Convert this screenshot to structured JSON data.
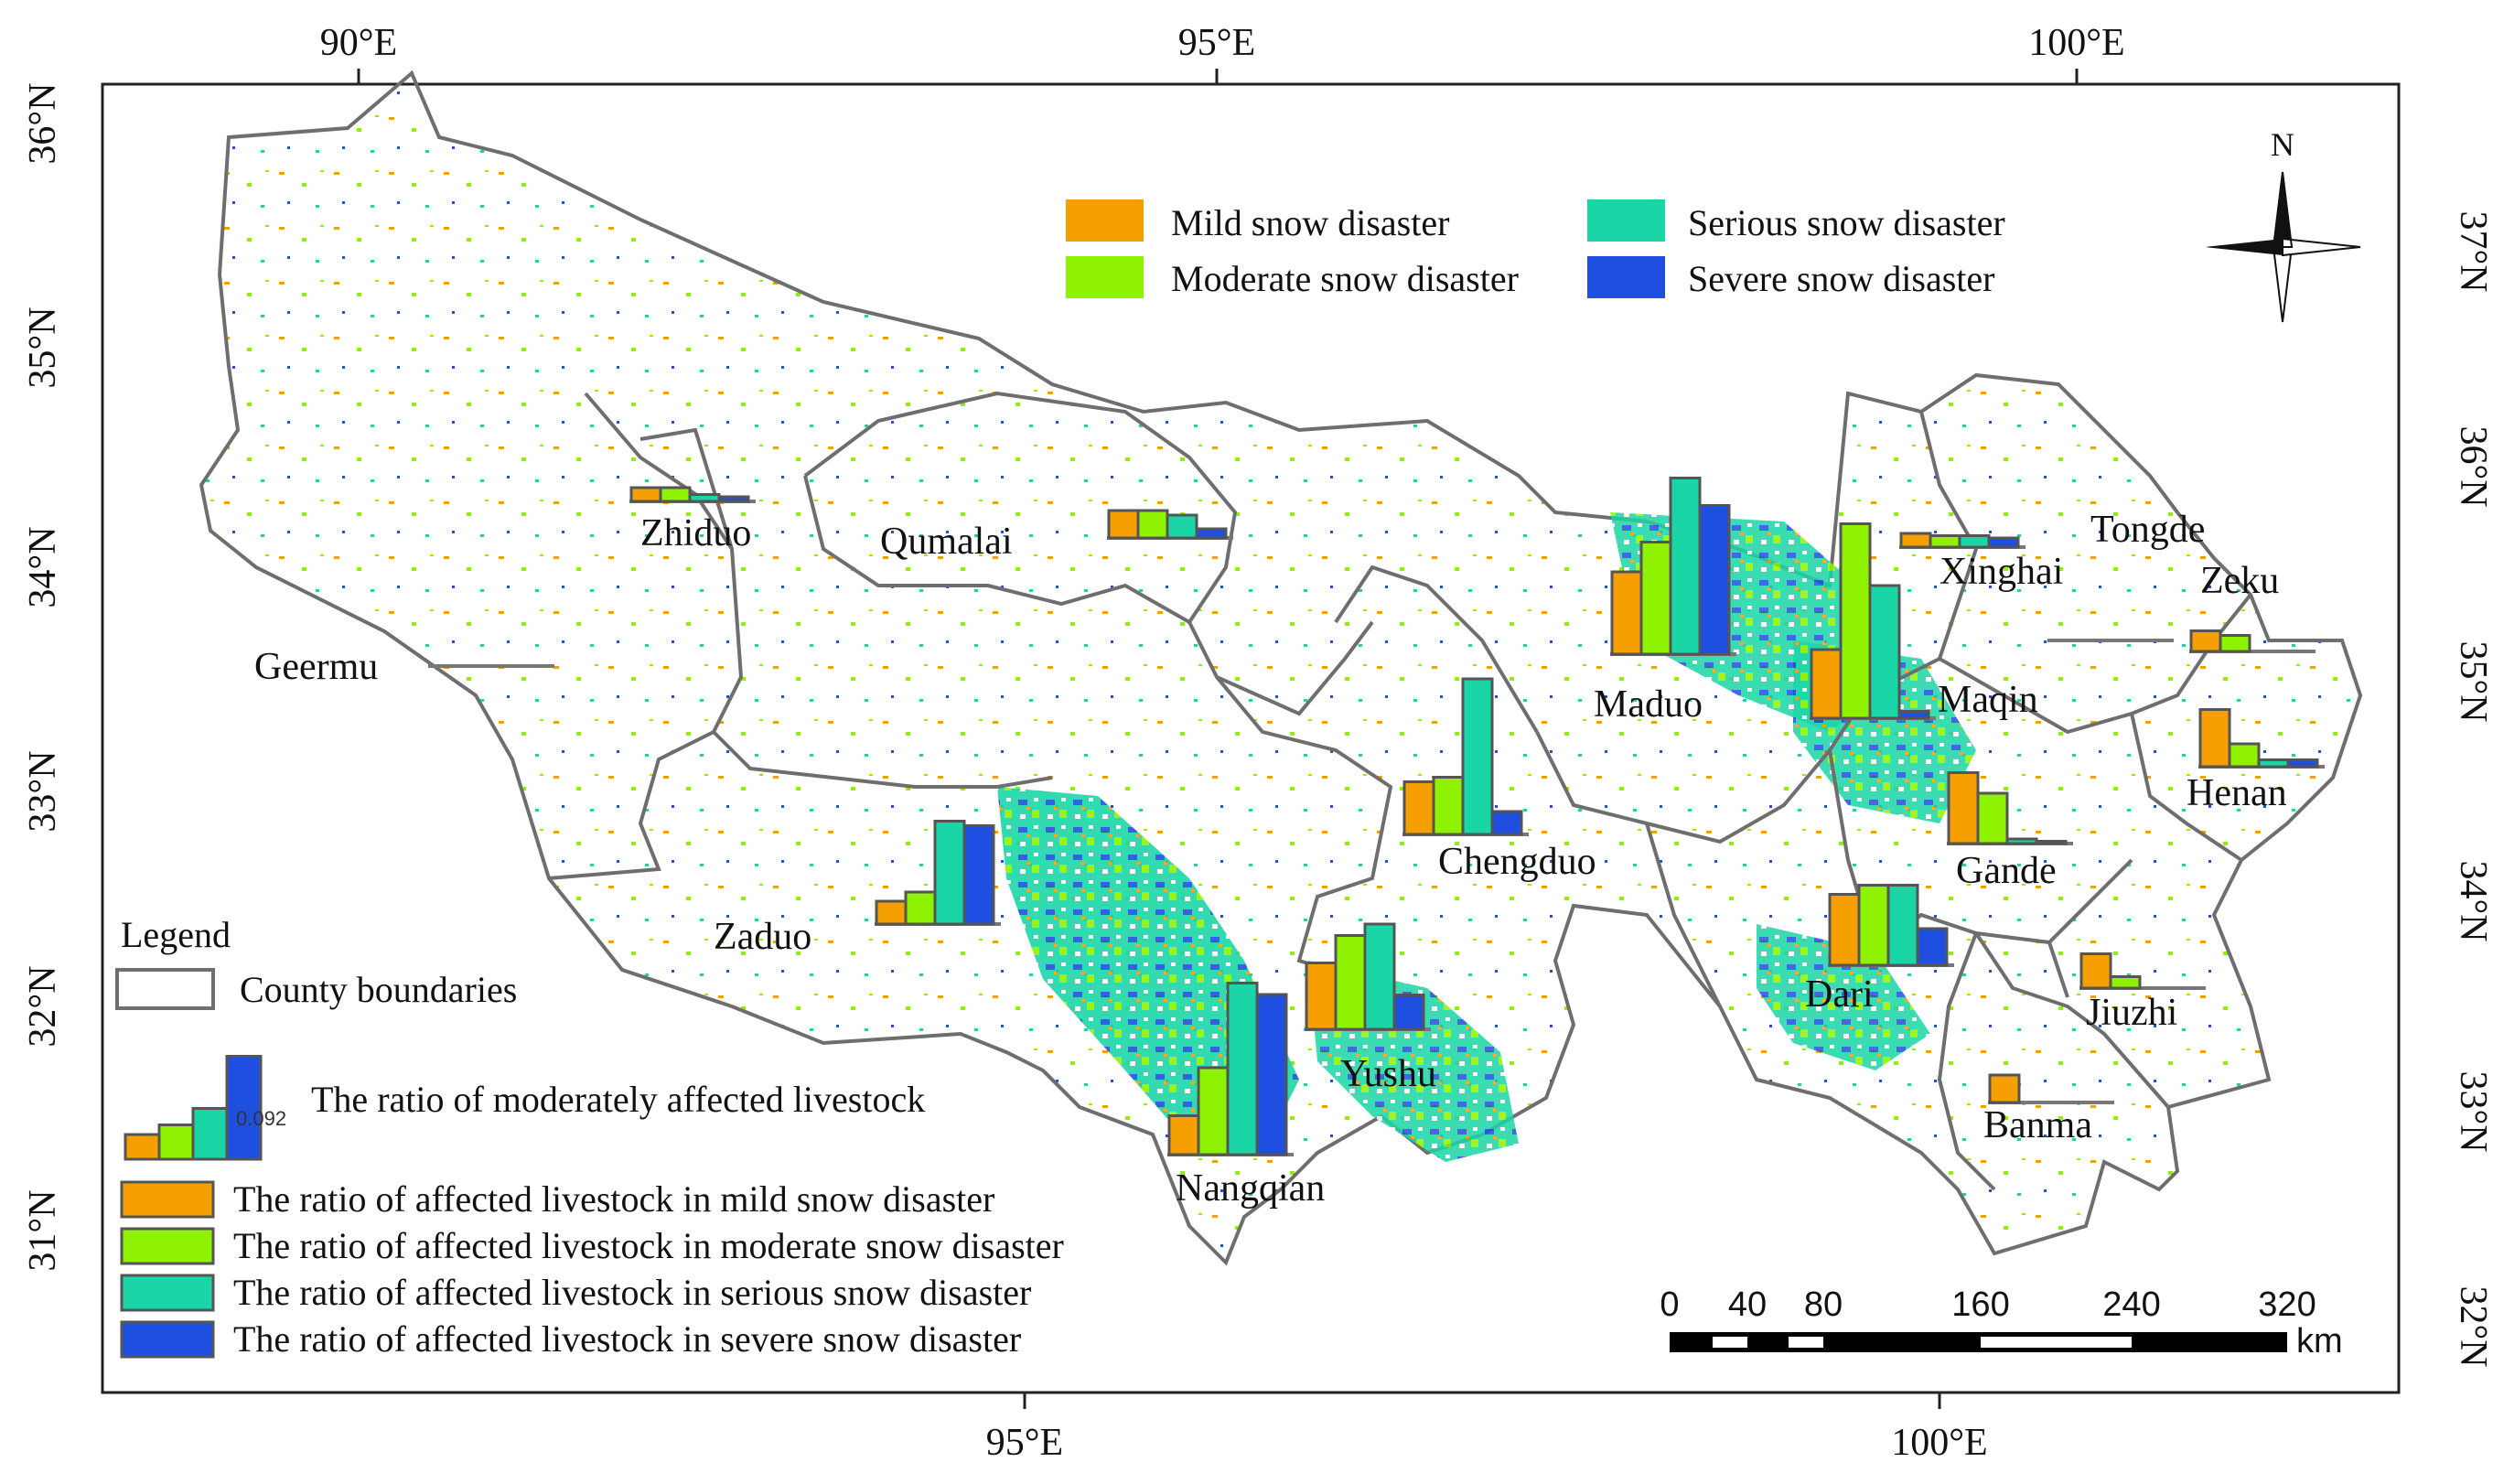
{
  "colors": {
    "mild": "#f5a000",
    "moderate": "#8ef200",
    "serious": "#1ad6a6",
    "severe": "#1f4fe0",
    "boundary": "#6e6e6e",
    "bar_outline": "#555555"
  },
  "axes": {
    "top_ticks": [
      "90°E",
      "95°E",
      "100°E"
    ],
    "bottom_ticks": [
      "95°E",
      "100°E"
    ],
    "left_ticks": [
      "36°N",
      "35°N",
      "34°N",
      "33°N",
      "32°N",
      "31°N"
    ],
    "right_ticks": [
      "37°N",
      "36°N",
      "35°N",
      "34°N",
      "33°N",
      "32°N"
    ]
  },
  "map_legend": {
    "mild": "Mild snow disaster",
    "moderate": "Moderate snow disaster",
    "serious": "Serious snow disaster",
    "severe": "Severe snow disaster"
  },
  "north_arrow": {
    "label": "N"
  },
  "counties": [
    {
      "name": "Zhiduo",
      "ratios": [
        0.006,
        0.006,
        0.003,
        0.002
      ]
    },
    {
      "name": "Qumalai",
      "ratios": [
        0.012,
        0.012,
        0.01,
        0.004
      ]
    },
    {
      "name": "Geermu",
      "ratios": [
        0.0,
        0.0,
        0.0,
        0.0
      ]
    },
    {
      "name": "Zaduo",
      "ratios": [
        0.01,
        0.014,
        0.045,
        0.043
      ]
    },
    {
      "name": "Chengduo",
      "ratios": [
        0.023,
        0.025,
        0.068,
        0.01
      ]
    },
    {
      "name": "Nangqian",
      "ratios": [
        0.017,
        0.038,
        0.075,
        0.07
      ]
    },
    {
      "name": "Yushu",
      "ratios": [
        0.029,
        0.041,
        0.046,
        0.015
      ]
    },
    {
      "name": "Maduo",
      "ratios": [
        0.036,
        0.049,
        0.077,
        0.065
      ]
    },
    {
      "name": "Maqin",
      "ratios": [
        0.03,
        0.085,
        0.058,
        0.003
      ]
    },
    {
      "name": "Xinghai",
      "ratios": [
        0.006,
        0.005,
        0.005,
        0.004
      ]
    },
    {
      "name": "Tongde",
      "ratios": [
        0.0,
        0.0,
        0.0,
        0.0
      ]
    },
    {
      "name": "Zeku",
      "ratios": [
        0.009,
        0.007,
        0.0,
        0.0
      ]
    },
    {
      "name": "Henan",
      "ratios": [
        0.025,
        0.01,
        0.003,
        0.003
      ]
    },
    {
      "name": "Gande",
      "ratios": [
        0.031,
        0.022,
        0.002,
        0.001
      ]
    },
    {
      "name": "Dari",
      "ratios": [
        0.031,
        0.035,
        0.035,
        0.016
      ]
    },
    {
      "name": "Jiuzhi",
      "ratios": [
        0.015,
        0.005,
        0.0,
        0.0
      ]
    },
    {
      "name": "Banma",
      "ratios": [
        0.012,
        0.0,
        0.0,
        0.0
      ]
    }
  ],
  "legend": {
    "title": "Legend",
    "county_boundaries": "County boundaries",
    "bar_value": "0.092",
    "bar_sample_text": "The ratio of moderately affected livestock",
    "items": [
      "The ratio of affected livestock in mild snow disaster",
      "The ratio of affected livestock in moderate snow disaster",
      "The ratio of affected livestock in serious snow disaster",
      "The ratio of affected livestock in severe snow disaster"
    ]
  },
  "scale_bar": {
    "ticks": [
      "0",
      "40",
      "80",
      "160",
      "240",
      "320"
    ],
    "unit": "km"
  }
}
